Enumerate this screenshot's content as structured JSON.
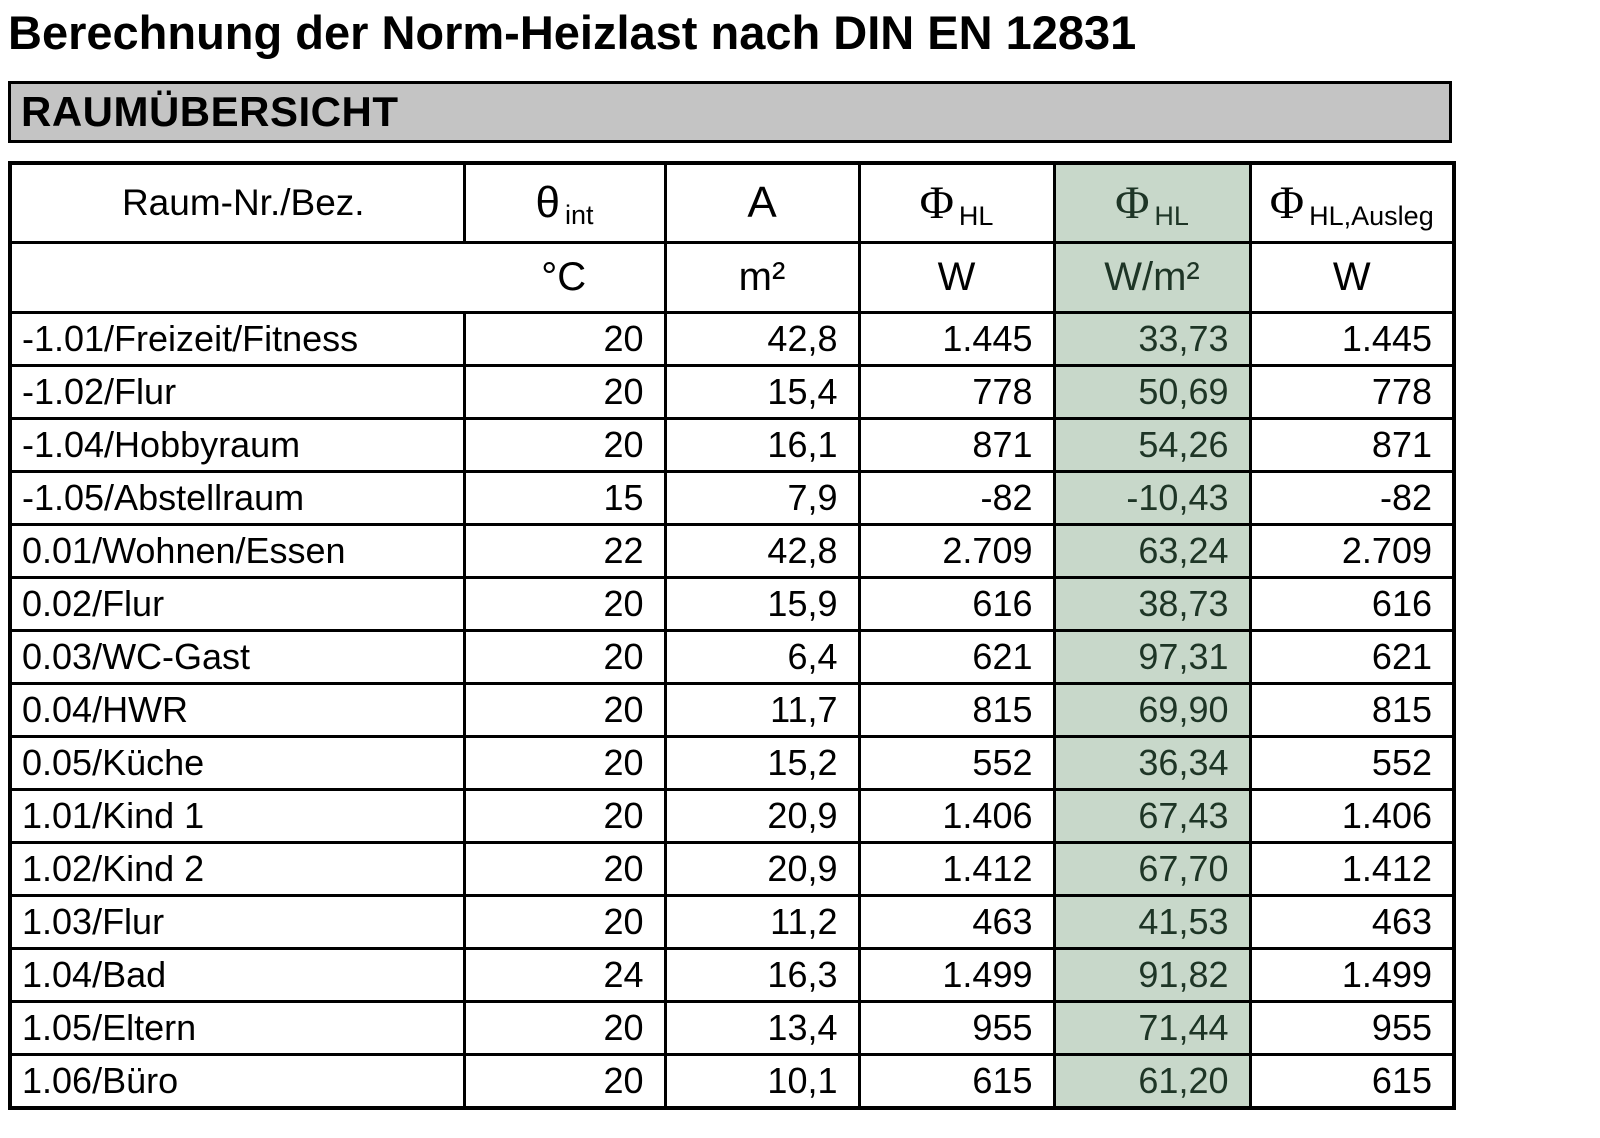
{
  "title": "Berechnung der Norm-Heizlast nach DIN EN 12831",
  "banner": "RAUMÜBERSICHT",
  "colors": {
    "highlight_bg": "#c8d8ca",
    "highlight_text": "#1e3526",
    "banner_bg": "#c4c4c4"
  },
  "table": {
    "columns": [
      {
        "header": "Raum-Nr./Bez.",
        "symbol": "",
        "sub": "",
        "unit": ""
      },
      {
        "symbol": "θ",
        "sub": "int",
        "unit": "°C"
      },
      {
        "symbol": "A",
        "sub": "",
        "unit": "m²"
      },
      {
        "symbol": "Φ",
        "sub": "HL",
        "unit": "W"
      },
      {
        "symbol": "Φ",
        "sub": "HL",
        "unit": "W/m²",
        "highlight": true
      },
      {
        "symbol": "Φ",
        "sub": "HL,Ausleg",
        "unit": "W"
      }
    ],
    "rows": [
      [
        "-1.01/Freizeit/Fitness",
        "20",
        "42,8",
        "1.445",
        "33,73",
        "1.445"
      ],
      [
        "-1.02/Flur",
        "20",
        "15,4",
        "778",
        "50,69",
        "778"
      ],
      [
        "-1.04/Hobbyraum",
        "20",
        "16,1",
        "871",
        "54,26",
        "871"
      ],
      [
        "-1.05/Abstellraum",
        "15",
        "7,9",
        "-82",
        "-10,43",
        "-82"
      ],
      [
        "0.01/Wohnen/Essen",
        "22",
        "42,8",
        "2.709",
        "63,24",
        "2.709"
      ],
      [
        "0.02/Flur",
        "20",
        "15,9",
        "616",
        "38,73",
        "616"
      ],
      [
        "0.03/WC-Gast",
        "20",
        "6,4",
        "621",
        "97,31",
        "621"
      ],
      [
        "0.04/HWR",
        "20",
        "11,7",
        "815",
        "69,90",
        "815"
      ],
      [
        "0.05/Küche",
        "20",
        "15,2",
        "552",
        "36,34",
        "552"
      ],
      [
        "1.01/Kind 1",
        "20",
        "20,9",
        "1.406",
        "67,43",
        "1.406"
      ],
      [
        "1.02/Kind 2",
        "20",
        "20,9",
        "1.412",
        "67,70",
        "1.412"
      ],
      [
        "1.03/Flur",
        "20",
        "11,2",
        "463",
        "41,53",
        "463"
      ],
      [
        "1.04/Bad",
        "24",
        "16,3",
        "1.499",
        "91,82",
        "1.499"
      ],
      [
        "1.05/Eltern",
        "20",
        "13,4",
        "955",
        "71,44",
        "955"
      ],
      [
        "1.06/Büro",
        "20",
        "10,1",
        "615",
        "61,20",
        "615"
      ]
    ]
  }
}
